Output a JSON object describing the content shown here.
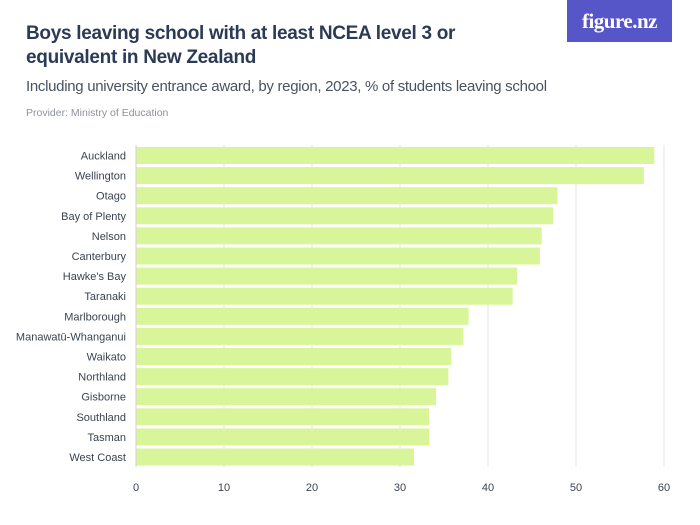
{
  "header": {
    "title": "Boys leaving school with at least NCEA level 3 or equivalent in New Zealand",
    "subtitle": "Including university entrance award, by region, 2023, % of students leaving school",
    "provider": "Provider: Ministry of Education",
    "logo_text": "figure.nz"
  },
  "colors": {
    "bar": "#d8f59a",
    "grid": "#e3e3e3",
    "logo_bg": "#5756c8"
  },
  "chart_data": {
    "type": "bar",
    "orientation": "horizontal",
    "title": "Boys leaving school with at least NCEA level 3 or equivalent in New Zealand",
    "subtitle": "Including university entrance award, by region, 2023, % of students leaving school",
    "xlabel": "",
    "ylabel": "",
    "xlim": [
      0,
      60
    ],
    "ticks": [
      0,
      10,
      20,
      30,
      40,
      50,
      60
    ],
    "grid": true,
    "categories": [
      "Auckland",
      "Wellington",
      "Otago",
      "Bay of Plenty",
      "Nelson",
      "Canterbury",
      "Hawke's Bay",
      "Taranaki",
      "Marlborough",
      "Manawatū-Whanganui",
      "Waikato",
      "Northland",
      "Gisborne",
      "Southland",
      "Tasman",
      "West Coast"
    ],
    "values": [
      58.9,
      57.7,
      47.9,
      47.4,
      46.1,
      45.9,
      43.3,
      42.8,
      37.8,
      37.2,
      35.8,
      35.5,
      34.1,
      33.3,
      33.3,
      31.6
    ]
  }
}
